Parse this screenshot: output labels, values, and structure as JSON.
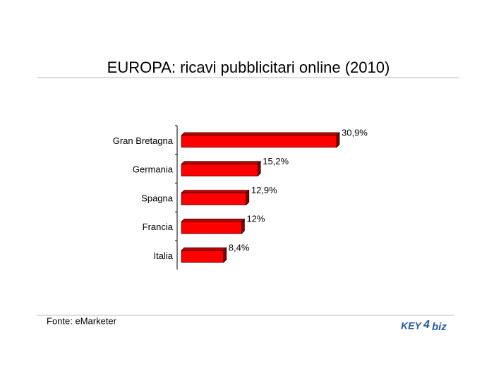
{
  "chart_data": {
    "type": "bar",
    "orientation": "horizontal",
    "title": "EUROPA: ricavi pubblicitari online (2010)",
    "categories": [
      "Gran Bretagna",
      "Germania",
      "Spagna",
      "Francia",
      "Italia"
    ],
    "values": [
      30.9,
      15.2,
      12.9,
      12,
      8.4
    ],
    "value_labels": [
      "30,9%",
      "15,2%",
      "12,9%",
      "12%",
      "8,4%"
    ],
    "color": "#ff0000"
  },
  "footer": {
    "source": "Fonte: eMarketer",
    "logo": {
      "left": "KEY",
      "mid": "4",
      "right": "biz"
    }
  }
}
